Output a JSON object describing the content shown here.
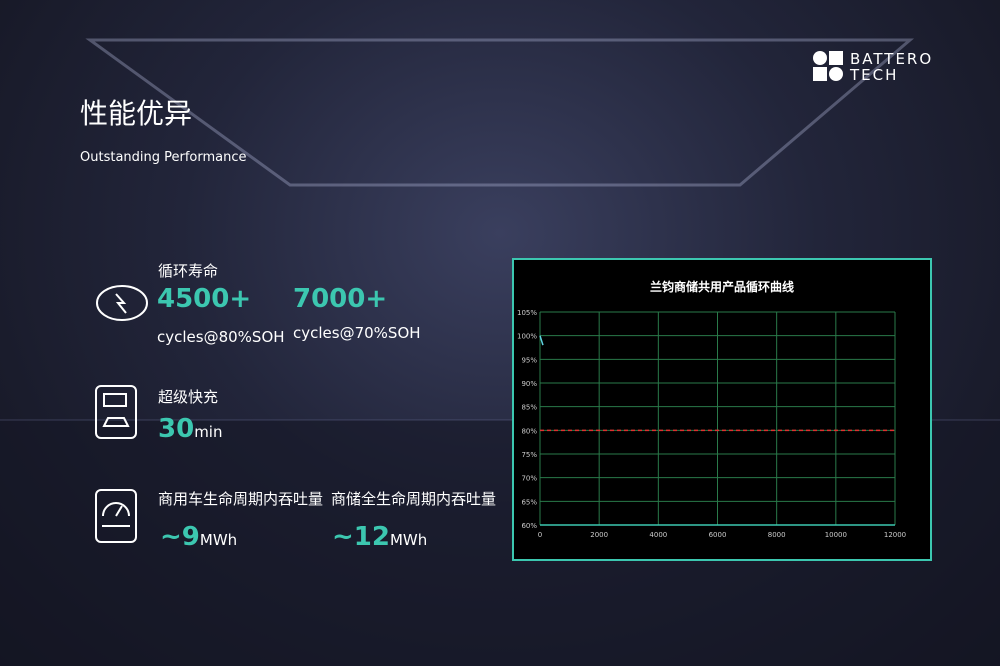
{
  "logo": {
    "line1": "BATTERO",
    "line2": "TECH"
  },
  "header": {
    "title": "性能优异",
    "subtitle": "Outstanding Performance"
  },
  "metrics": [
    {
      "label": "循环寿命",
      "items": [
        {
          "value": "4500+",
          "unit": "cycles@80%SOH"
        },
        {
          "value": "7000+",
          "unit": "cycles@70%SOH"
        }
      ]
    },
    {
      "label": "超级快充",
      "items": [
        {
          "value": "30",
          "unit": "min"
        }
      ]
    },
    {
      "labels": [
        "商用车生命周期内吞吐量",
        "商储全生命周期内吞吐量"
      ],
      "items": [
        {
          "value": "~9",
          "unit": "MWh"
        },
        {
          "value": "~12",
          "unit": "MWh"
        }
      ]
    }
  ],
  "chart_data": {
    "type": "line",
    "title": "兰钧商储共用产品循环曲线",
    "series": [
      {
        "color": "#5fd3e0",
        "x": [
          0,
          100
        ],
        "values": [
          100,
          98
        ]
      }
    ],
    "reference_line": {
      "value": 80,
      "color": "#e03030"
    },
    "xlim": [
      0,
      12000
    ],
    "xticks": [
      0,
      2000,
      4000,
      6000,
      8000,
      10000,
      12000
    ],
    "ylim": [
      60,
      105
    ],
    "yticks": [
      {
        "value": 60,
        "label": "60%"
      },
      {
        "value": 65,
        "label": "65%"
      },
      {
        "value": 70,
        "label": "70%"
      },
      {
        "value": 75,
        "label": "75%"
      },
      {
        "value": 80,
        "label": "80%"
      },
      {
        "value": 85,
        "label": "85%"
      },
      {
        "value": 90,
        "label": "90%"
      },
      {
        "value": 95,
        "label": "95%"
      },
      {
        "value": 100,
        "label": "100%"
      },
      {
        "value": 105,
        "label": "105%"
      }
    ],
    "grid": true,
    "grid_color": "#2a7a4a"
  }
}
